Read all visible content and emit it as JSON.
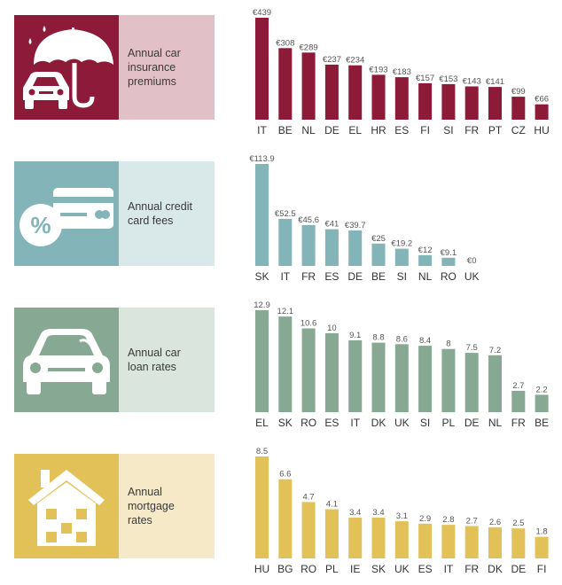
{
  "panels": [
    {
      "id": "car-insurance",
      "label": "Annual car insurance premiums",
      "label_lines": [
        "Annual car",
        "insurance",
        "premiums"
      ],
      "icon": "umbrella-car-icon",
      "icon_bg": "#8c1a38",
      "label_bg": "#e2c0c8",
      "bar_color": "#8c1a38",
      "chart_data": {
        "type": "bar",
        "categories": [
          "IT",
          "BE",
          "NL",
          "DE",
          "EL",
          "HR",
          "ES",
          "FI",
          "SI",
          "FR",
          "PT",
          "CZ",
          "HU"
        ],
        "values": [
          439,
          308,
          289,
          237,
          234,
          193,
          183,
          157,
          153,
          143,
          141,
          99,
          66
        ],
        "value_labels": [
          "€439",
          "€308",
          "€289",
          "€237",
          "€234",
          "€193",
          "€183",
          "€157",
          "€153",
          "€143",
          "€141",
          "€99",
          "€66"
        ],
        "title": "",
        "xlabel": "",
        "ylabel": "",
        "ylim": [
          0,
          439
        ]
      }
    },
    {
      "id": "credit-card",
      "label": "Annual credit card fees",
      "label_lines": [
        "Annual credit",
        "card fees"
      ],
      "icon": "credit-card-percent-icon",
      "icon_bg": "#82b4b8",
      "label_bg": "#d9e9ea",
      "bar_color": "#82b4b8",
      "chart_data": {
        "type": "bar",
        "categories": [
          "SK",
          "IT",
          "FR",
          "ES",
          "DE",
          "BE",
          "SI",
          "NL",
          "RO",
          "UK"
        ],
        "values": [
          113.9,
          52.5,
          45.6,
          41,
          39.7,
          25,
          19.2,
          12,
          9.1,
          0
        ],
        "value_labels": [
          "€113.9",
          "€52.5",
          "€45.6",
          "€41",
          "€39.7",
          "€25",
          "€19.2",
          "€12",
          "€9.1",
          "€0"
        ],
        "title": "",
        "xlabel": "",
        "ylabel": "",
        "ylim": [
          0,
          113.9
        ]
      }
    },
    {
      "id": "car-loan",
      "label": "Annual car loan rates",
      "label_lines": [
        "Annual car",
        "loan rates"
      ],
      "icon": "car-icon",
      "icon_bg": "#87a893",
      "label_bg": "#dae5dd",
      "bar_color": "#87a893",
      "chart_data": {
        "type": "bar",
        "categories": [
          "EL",
          "SK",
          "RO",
          "ES",
          "IT",
          "DK",
          "UK",
          "SI",
          "PL",
          "DE",
          "NL",
          "FR",
          "BE"
        ],
        "values": [
          12.9,
          12.1,
          10.6,
          10,
          9.1,
          8.8,
          8.6,
          8.4,
          8,
          7.5,
          7.2,
          2.7,
          2.2
        ],
        "value_labels": [
          "12.9",
          "12.1",
          "10.6",
          "10",
          "9.1",
          "8.8",
          "8.6",
          "8.4",
          "8",
          "7.5",
          "7.2",
          "2.7",
          "2.2"
        ],
        "title": "",
        "xlabel": "",
        "ylabel": "",
        "ylim": [
          0,
          12.9
        ]
      }
    },
    {
      "id": "mortgage",
      "label": "Annual mortgage rates",
      "label_lines": [
        "Annual",
        "mortgage",
        "rates"
      ],
      "icon": "house-icon",
      "icon_bg": "#e2c158",
      "label_bg": "#f5e9c7",
      "bar_color": "#e2c158",
      "chart_data": {
        "type": "bar",
        "categories": [
          "HU",
          "BG",
          "RO",
          "PL",
          "IE",
          "SK",
          "UK",
          "ES",
          "IT",
          "FR",
          "DK",
          "DE",
          "FI"
        ],
        "values": [
          8.5,
          6.6,
          4.7,
          4.1,
          3.4,
          3.4,
          3.1,
          2.9,
          2.8,
          2.7,
          2.6,
          2.5,
          1.8
        ],
        "value_labels": [
          "8.5",
          "6.6",
          "4.7",
          "4.1",
          "3.4",
          "3.4",
          "3.1",
          "2.9",
          "2.8",
          "2.7",
          "2.6",
          "2.5",
          "1.8"
        ],
        "title": "",
        "xlabel": "",
        "ylabel": "",
        "ylim": [
          0,
          8.5
        ]
      }
    }
  ]
}
